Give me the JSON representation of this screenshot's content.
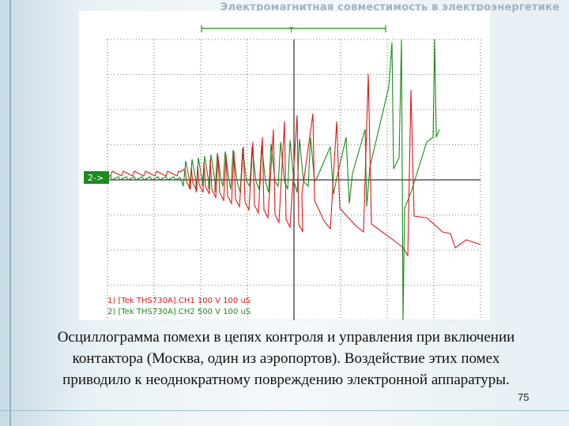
{
  "header": {
    "title": "Электромагнитная совместимость в электроэнергетике"
  },
  "scope": {
    "trigger_marker": "T",
    "ch2_marker": "2->",
    "legend_ch1": "1) [Tek THS730A].CH1 100 V 100 uS",
    "legend_ch2": "2) [Tek THS730A].CH2 500 V 100 uS",
    "colors": {
      "ch1": "#e01818",
      "ch2": "#1c8a1c",
      "grid": "#000000"
    }
  },
  "caption": {
    "line1": "Осциллограмма помехи в цепях контроля и управления при включении",
    "line2": "контактора (Москва, один из аэропортов). Воздействие этих помех",
    "line3": "приводило к неоднократному повреждению электронной аппаратуры."
  },
  "page_number": "75"
}
